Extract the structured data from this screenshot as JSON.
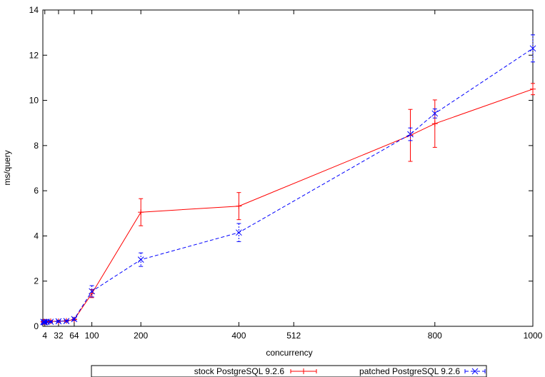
{
  "chart_data": {
    "type": "line",
    "xlabel": "concurrency",
    "ylabel": "ms/query",
    "xlim": [
      0,
      1000
    ],
    "ylim": [
      0,
      14
    ],
    "x_ticks": [
      4,
      32,
      64,
      100,
      200,
      400,
      512,
      800,
      1000
    ],
    "y_ticks": [
      0,
      2,
      4,
      6,
      8,
      10,
      12,
      14
    ],
    "grid": false,
    "legend_position": "bottom",
    "series": [
      {
        "name": "stock PostgreSQL 9.2.6",
        "color": "#ff0000",
        "line_style": "solid",
        "marker": "plus",
        "x": [
          1,
          2,
          4,
          8,
          16,
          32,
          48,
          64,
          100,
          200,
          400,
          750,
          800,
          1000
        ],
        "y": [
          0.2,
          0.2,
          0.2,
          0.2,
          0.22,
          0.22,
          0.24,
          0.3,
          1.45,
          5.05,
          5.32,
          8.45,
          8.97,
          10.5
        ],
        "err": [
          0.04,
          0.04,
          0.04,
          0.04,
          0.04,
          0.04,
          0.04,
          0.05,
          0.18,
          0.6,
          0.6,
          1.15,
          1.05,
          0.25
        ]
      },
      {
        "name": "patched PostgreSQL 9.2.6",
        "color": "#0000ff",
        "line_style": "dashed",
        "marker": "cross",
        "x": [
          1,
          2,
          4,
          8,
          16,
          32,
          48,
          64,
          100,
          200,
          400,
          750,
          800,
          1000
        ],
        "y": [
          0.2,
          0.18,
          0.18,
          0.2,
          0.2,
          0.22,
          0.23,
          0.32,
          1.55,
          2.95,
          4.15,
          8.5,
          9.42,
          12.3
        ],
        "err": [
          0.04,
          0.04,
          0.04,
          0.04,
          0.04,
          0.04,
          0.04,
          0.06,
          0.25,
          0.3,
          0.4,
          0.28,
          0.2,
          0.6
        ]
      }
    ]
  }
}
